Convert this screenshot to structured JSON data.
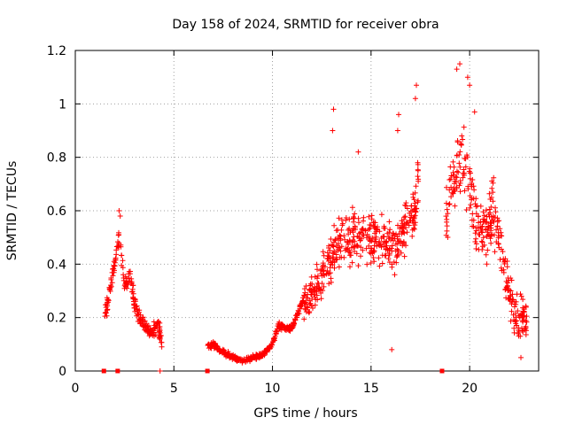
{
  "chart_data": {
    "type": "scatter",
    "title": "Day 158 of 2024, SRMTID for receiver obra",
    "xlabel": "GPS time / hours",
    "ylabel": "SRMTID / TECUs",
    "xlim": [
      0,
      23.5
    ],
    "ylim": [
      0,
      1.2
    ],
    "x_ticks": [
      0,
      5,
      10,
      15,
      20
    ],
    "x_tick_labels": [
      "0",
      "5",
      "10",
      "15",
      "20"
    ],
    "y_ticks": [
      0,
      0.2,
      0.4,
      0.6,
      0.8,
      1.0,
      1.2
    ],
    "y_tick_labels": [
      "0",
      "0.2",
      "0.4",
      "0.6",
      "0.8",
      "1",
      "1.2"
    ],
    "grid": true,
    "marker": "+",
    "color": "#ff0000",
    "zero_markers_x": [
      1.45,
      2.15,
      6.7,
      18.6
    ],
    "segments": [
      {
        "name": "pass-1",
        "x_start": 1.5,
        "x_end": 4.4,
        "x": [
          1.5,
          1.8,
          2.1,
          2.25,
          2.5,
          2.8,
          3.0,
          3.3,
          3.6,
          3.9,
          4.2,
          4.4
        ],
        "y": [
          0.2,
          0.32,
          0.45,
          0.5,
          0.32,
          0.36,
          0.25,
          0.2,
          0.15,
          0.14,
          0.18,
          0.1
        ],
        "spread": 0.06,
        "outliers": [
          {
            "x": 2.22,
            "y": 0.6
          },
          {
            "x": 2.28,
            "y": 0.58
          },
          {
            "x": 4.3,
            "y": 0.0
          }
        ]
      },
      {
        "name": "pass-2",
        "x_start": 6.7,
        "x_end": 11.6,
        "x": [
          6.7,
          7.0,
          7.5,
          8.0,
          8.5,
          9.0,
          9.5,
          10.0,
          10.3,
          10.7,
          11.0,
          11.3,
          11.6
        ],
        "y": [
          0.09,
          0.1,
          0.07,
          0.05,
          0.04,
          0.05,
          0.06,
          0.1,
          0.17,
          0.16,
          0.16,
          0.22,
          0.27
        ],
        "spread": 0.025,
        "outliers": []
      },
      {
        "name": "pass-3",
        "x_start": 11.6,
        "x_end": 17.4,
        "x": [
          11.6,
          12.2,
          12.8,
          13.3,
          13.8,
          14.3,
          14.8,
          15.3,
          15.8,
          16.3,
          16.8,
          17.2,
          17.4
        ],
        "y": [
          0.25,
          0.3,
          0.4,
          0.48,
          0.5,
          0.52,
          0.5,
          0.5,
          0.48,
          0.45,
          0.55,
          0.6,
          0.72
        ],
        "spread": 0.14,
        "outliers": [
          {
            "x": 13.05,
            "y": 0.9
          },
          {
            "x": 13.1,
            "y": 0.98
          },
          {
            "x": 14.35,
            "y": 0.82
          },
          {
            "x": 16.35,
            "y": 0.9
          },
          {
            "x": 16.4,
            "y": 0.96
          },
          {
            "x": 17.25,
            "y": 1.02
          },
          {
            "x": 17.3,
            "y": 1.07
          },
          {
            "x": 16.05,
            "y": 0.08
          }
        ]
      },
      {
        "name": "pass-4",
        "x_start": 18.8,
        "x_end": 22.9,
        "x": [
          18.8,
          19.2,
          19.6,
          20.0,
          20.4,
          20.8,
          21.2,
          21.6,
          22.0,
          22.4,
          22.9
        ],
        "y": [
          0.55,
          0.72,
          0.78,
          0.7,
          0.55,
          0.52,
          0.6,
          0.45,
          0.3,
          0.2,
          0.2
        ],
        "spread": 0.15,
        "outliers": [
          {
            "x": 19.5,
            "y": 1.15
          },
          {
            "x": 19.35,
            "y": 1.13
          },
          {
            "x": 19.9,
            "y": 1.1
          },
          {
            "x": 20.0,
            "y": 1.07
          },
          {
            "x": 20.25,
            "y": 0.97
          },
          {
            "x": 22.6,
            "y": 0.05
          }
        ]
      }
    ]
  }
}
